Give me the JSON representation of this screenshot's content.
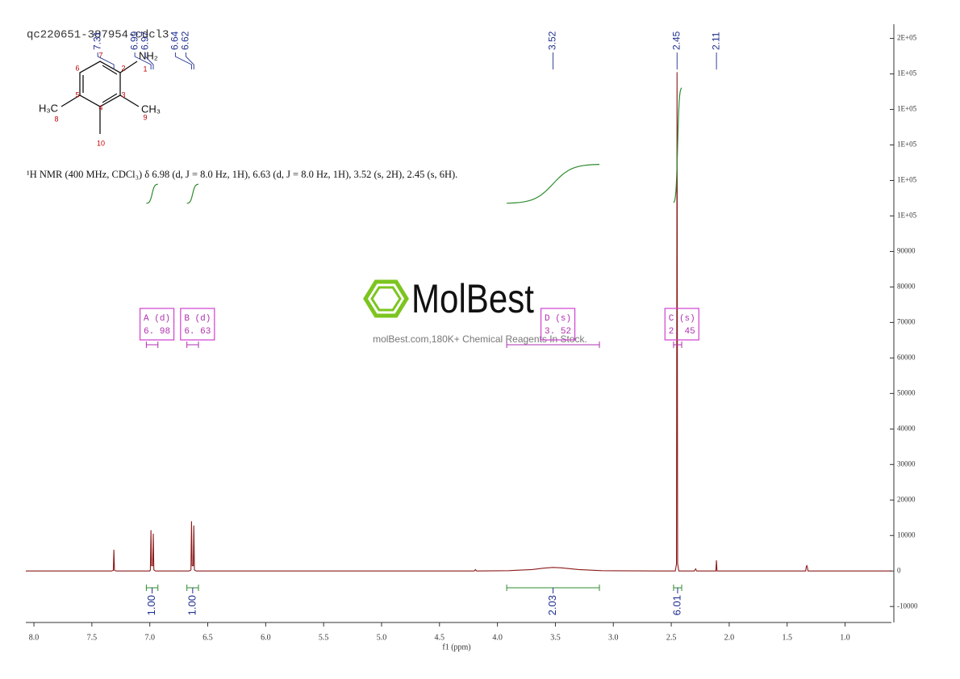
{
  "chart_data": {
    "type": "line",
    "title": "qc220651-387954-cdcl3",
    "x_label": "f1 (ppm)",
    "color": "#8b1a1a",
    "x": [
      8.07,
      7.33,
      7.315,
      7.31,
      7.305,
      7.29,
      7.0,
      6.995,
      6.99,
      6.985,
      6.975,
      6.97,
      6.965,
      6.95,
      6.66,
      6.645,
      6.64,
      6.635,
      6.625,
      6.62,
      6.615,
      6.6,
      4.2,
      4.19,
      4.18,
      3.9,
      3.7,
      3.6,
      3.52,
      3.45,
      3.3,
      3.1,
      2.6,
      2.465,
      2.455,
      2.45,
      2.445,
      2.435,
      2.3,
      2.29,
      2.28,
      2.115,
      2.11,
      2.105,
      1.34,
      1.335,
      1.33,
      1.325,
      1.32,
      0.6
    ],
    "values": [
      0,
      0,
      200,
      6000,
      200,
      0,
      0,
      300,
      11500,
      1500,
      1500,
      10500,
      300,
      0,
      0,
      300,
      14000,
      1500,
      1500,
      12800,
      300,
      0,
      0,
      400,
      0,
      100,
      400,
      800,
      1000,
      900,
      400,
      100,
      0,
      0,
      2000,
      140500,
      2000,
      0,
      0,
      600,
      0,
      0,
      3000,
      0,
      0,
      1200,
      1500,
      1000,
      0,
      0
    ],
    "xlim": [
      8.07,
      0.6
    ],
    "ylim": [
      -14500,
      154000
    ],
    "xticks": [
      {
        "value": 8,
        "label": "8.0"
      },
      7.5,
      {
        "value": 7,
        "label": "7.0"
      },
      6.5,
      {
        "value": 6,
        "label": "6.0"
      },
      5.5,
      {
        "value": 5,
        "label": "5.0"
      },
      4.5,
      {
        "value": 4,
        "label": "4.0"
      },
      3.5,
      {
        "value": 3,
        "label": "3.0"
      },
      2.5,
      {
        "value": 2,
        "label": "2.0"
      },
      1.5,
      {
        "value": 1,
        "label": "1.0"
      }
    ],
    "yticks": [
      -10000,
      0,
      10000,
      20000,
      30000,
      40000,
      50000,
      60000,
      70000,
      80000,
      90000,
      {
        "value": 100000,
        "label": "1E+05"
      },
      {
        "value": 110000,
        "label": "1E+05"
      },
      {
        "value": 120000,
        "label": "1E+05"
      },
      {
        "value": 130000,
        "label": "1E+05"
      },
      {
        "value": 140000,
        "label": "1E+05"
      },
      {
        "value": 150000,
        "label": "2E+05"
      }
    ],
    "peaks": [
      7.31,
      6.99,
      6.97,
      6.64,
      6.62,
      3.52,
      2.45,
      2.11
    ],
    "integrals": {
      "ranges": [
        [
          7.03,
          6.93
        ],
        [
          6.68,
          6.58
        ],
        [
          3.92,
          3.12
        ],
        [
          2.48,
          2.41
        ]
      ],
      "values": [
        1,
        1,
        2.03,
        6.01
      ],
      "value_labels": [
        "1.00",
        "1.00",
        "2.03",
        "6.01"
      ]
    },
    "multiplets": [
      {
        "name": "A (d)",
        "shift": {
          "value": 6.98,
          "label": "6. 98"
        },
        "range": [
          7.03,
          6.93
        ]
      },
      {
        "name": "B (d)",
        "shift": {
          "value": 6.63,
          "label": "6. 63"
        },
        "range": [
          6.68,
          6.58
        ]
      },
      {
        "name": "D (s)",
        "shift": {
          "value": 3.52,
          "label": "3. 52"
        },
        "range": [
          3.92,
          3.12
        ]
      },
      {
        "name": "C (s)",
        "shift": {
          "value": 2.45,
          "label": "2. 45"
        },
        "range": [
          2.48,
          2.41
        ]
      }
    ]
  },
  "structure": {
    "atoms": [
      "NH₂",
      "H₃C",
      "CH₃"
    ],
    "numbers": [
      "1",
      "2",
      "3",
      "4",
      "5",
      "6",
      "7",
      "8",
      "9",
      "10"
    ]
  },
  "description": "¹H NMR (400 MHz, CDCl₃) δ 6.98 (d, J = 8.0 Hz, 1H), 6.63 (d, J = 8.0 Hz, 1H), 3.52 (s, 2H), 2.45 (s, 6H).",
  "watermark": {
    "brand": "MolBest",
    "tagline": "molBest.com,180K+ Chemical Reagents In Stock."
  }
}
